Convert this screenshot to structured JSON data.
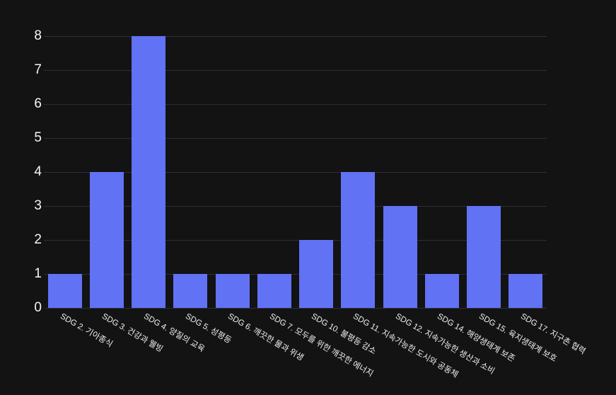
{
  "chart_data": {
    "type": "bar",
    "title": "",
    "xlabel": "",
    "ylabel": "",
    "categories": [
      "SDG 2. 기아종식",
      "SDG 3. 건강과 웰빙",
      "SDG 4. 양질의 교육",
      "SDG 5. 성평등",
      "SDG 6. 깨끗한 물과 위생",
      "SDG 7. 모두를 위한 깨끗한 에너지",
      "SDG 10. 불평등 감소",
      "SDG 11. 지속가능한 도시와 공동체",
      "SDG 12. 지속가능한 생산과 소비",
      "SDG 14. 해양생태계 보존",
      "SDG 15. 육지생태계 보호",
      "SDG 17. 지구촌 협력"
    ],
    "values": [
      1,
      4,
      8,
      1,
      1,
      1,
      2,
      4,
      3,
      1,
      3,
      1
    ],
    "ylim": [
      0,
      8
    ],
    "yticks": [
      0,
      1,
      2,
      3,
      4,
      5,
      6,
      7,
      8
    ],
    "grid": true,
    "legend_position": "none",
    "x_tick_rotation_deg": 30
  },
  "colors": {
    "background": "#131314",
    "bar": "#6272f5",
    "gridline": "#2a2f3a",
    "y_tick_label": "#f5f5f5",
    "x_tick_label": "#f0f0f0"
  }
}
